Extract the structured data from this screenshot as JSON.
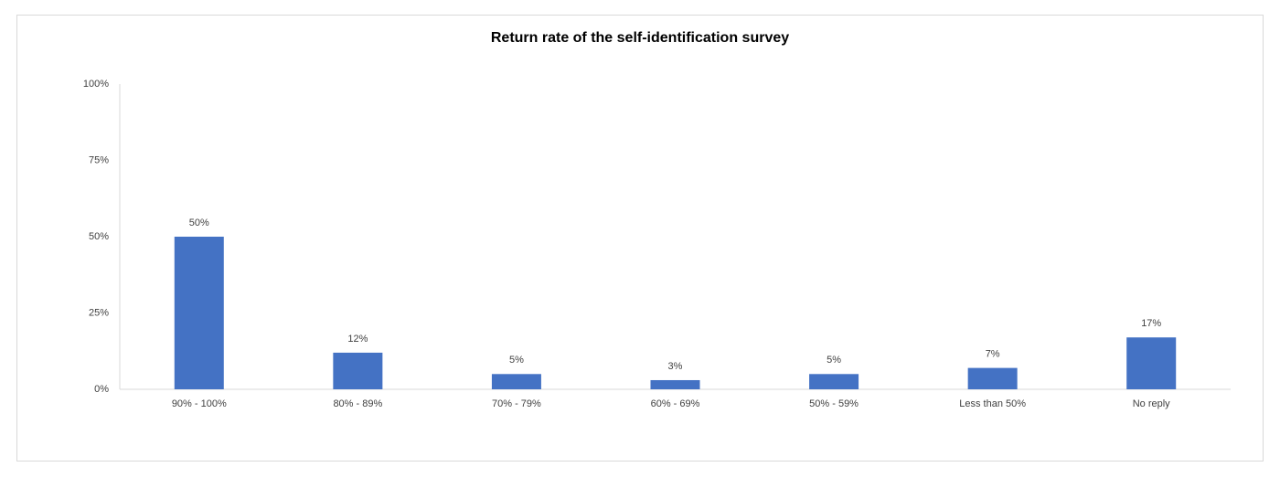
{
  "chart_data": {
    "type": "bar",
    "title": "Return rate of the self-identification survey",
    "categories": [
      "90% - 100%",
      "80% - 89%",
      "70% - 79%",
      "60% - 69%",
      "50% - 59%",
      "Less than 50%",
      "No reply"
    ],
    "values": [
      50,
      12,
      5,
      3,
      5,
      7,
      17
    ],
    "value_labels": [
      "50%",
      "12%",
      "5%",
      "3%",
      "5%",
      "7%",
      "17%"
    ],
    "color": "#4472c4",
    "ylim": [
      0,
      100
    ],
    "yticks": [
      {
        "value": 0,
        "label": "0%"
      },
      {
        "value": 25,
        "label": "25%"
      },
      {
        "value": 50,
        "label": "50%"
      },
      {
        "value": 75,
        "label": "75%"
      },
      {
        "value": 100,
        "label": "100%"
      }
    ],
    "grid": false
  }
}
